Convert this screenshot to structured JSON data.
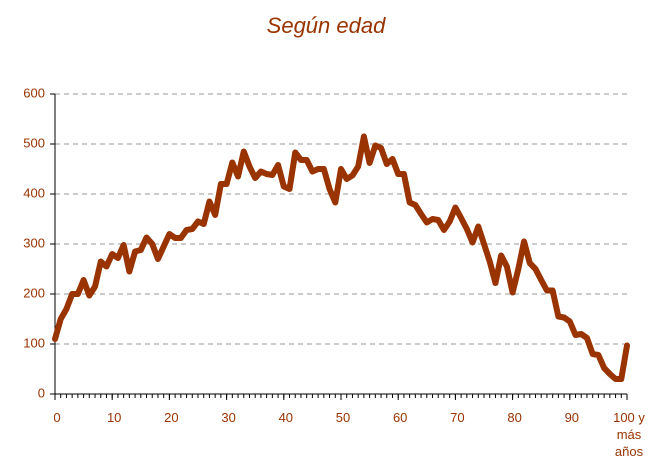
{
  "chart_data": {
    "type": "line",
    "title": "Según edad",
    "x": [
      0,
      1,
      2,
      3,
      4,
      5,
      6,
      7,
      8,
      9,
      10,
      11,
      12,
      13,
      14,
      15,
      16,
      17,
      18,
      19,
      20,
      21,
      22,
      23,
      24,
      25,
      26,
      27,
      28,
      29,
      30,
      31,
      32,
      33,
      34,
      35,
      36,
      37,
      38,
      39,
      40,
      41,
      42,
      43,
      44,
      45,
      46,
      47,
      48,
      49,
      50,
      51,
      52,
      53,
      54,
      55,
      56,
      57,
      58,
      59,
      60,
      61,
      62,
      63,
      64,
      65,
      66,
      67,
      68,
      69,
      70,
      71,
      72,
      73,
      74,
      75,
      76,
      77,
      78,
      79,
      80,
      81,
      82,
      83,
      84,
      85,
      86,
      87,
      88,
      89,
      90,
      91,
      92,
      93,
      94,
      95,
      96,
      97,
      98,
      99,
      100
    ],
    "series": [
      {
        "color": "#993300",
        "values": [
          110,
          150,
          170,
          200,
          200,
          228,
          197,
          215,
          265,
          255,
          280,
          272,
          298,
          245,
          285,
          288,
          313,
          300,
          270,
          295,
          320,
          312,
          312,
          328,
          330,
          345,
          340,
          385,
          358,
          420,
          420,
          463,
          435,
          485,
          455,
          432,
          445,
          440,
          438,
          458,
          415,
          410,
          483,
          468,
          468,
          445,
          450,
          450,
          410,
          383,
          450,
          430,
          437,
          455,
          515,
          462,
          497,
          492,
          460,
          470,
          440,
          440,
          383,
          378,
          360,
          343,
          350,
          348,
          328,
          345,
          373,
          352,
          330,
          303,
          335,
          300,
          265,
          222,
          277,
          255,
          203,
          250,
          305,
          262,
          250,
          228,
          207,
          207,
          155,
          153,
          145,
          118,
          120,
          112,
          80,
          78,
          52,
          40,
          30,
          30,
          97
        ]
      }
    ],
    "xlim": [
      0,
      100
    ],
    "xticks": [
      0,
      10,
      20,
      30,
      40,
      50,
      60,
      70,
      80,
      90,
      {
        "value": 100,
        "label": "100 y más años"
      }
    ],
    "ylim": [
      0,
      600
    ],
    "yticks": [
      0,
      100,
      200,
      300,
      400,
      500,
      600
    ],
    "grid": true
  }
}
